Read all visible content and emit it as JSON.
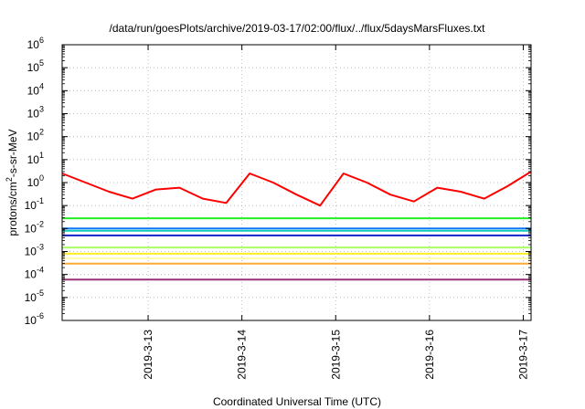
{
  "chart_data": {
    "type": "line",
    "title": "/data/run/goesPlots/archive/2019-03-17/02:00/flux/../flux/5daysMarsFluxes.txt",
    "xlabel": "Coordinated Universal Time (UTC)",
    "ylabel": "protons/cm2-s-sr-MeV",
    "ylabel_parts": {
      "pre": "protons/cm",
      "sup": "2",
      "post": "-s-sr-MeV"
    },
    "y_scale": "log",
    "ylim": [
      1e-06,
      1000000.0
    ],
    "xlim": [
      "2019-03-12 02:00",
      "2019-03-17 02:00"
    ],
    "grid": true,
    "y_ticks": [
      {
        "base": "10",
        "exp": "-6"
      },
      {
        "base": "10",
        "exp": "-5"
      },
      {
        "base": "10",
        "exp": "-4"
      },
      {
        "base": "10",
        "exp": "-3"
      },
      {
        "base": "10",
        "exp": "-2"
      },
      {
        "base": "10",
        "exp": "-1"
      },
      {
        "base": "10",
        "exp": "0"
      },
      {
        "base": "10",
        "exp": "1"
      },
      {
        "base": "10",
        "exp": "2"
      },
      {
        "base": "10",
        "exp": "3"
      },
      {
        "base": "10",
        "exp": "4"
      },
      {
        "base": "10",
        "exp": "5"
      },
      {
        "base": "10",
        "exp": "6"
      }
    ],
    "x_ticks": [
      {
        "label": "2019-3-13",
        "x": "2019-03-13 00:00"
      },
      {
        "label": "2019-3-14",
        "x": "2019-03-14 00:00"
      },
      {
        "label": "2019-3-15",
        "x": "2019-03-15 00:00"
      },
      {
        "label": "2019-3-16",
        "x": "2019-03-16 00:00"
      },
      {
        "label": "2019-3-17",
        "x": "2019-03-17 00:00"
      }
    ],
    "x": [
      "2019-03-12 02:00",
      "2019-03-12 08:00",
      "2019-03-12 14:00",
      "2019-03-12 20:00",
      "2019-03-13 02:00",
      "2019-03-13 08:00",
      "2019-03-13 14:00",
      "2019-03-13 20:00",
      "2019-03-14 02:00",
      "2019-03-14 08:00",
      "2019-03-14 14:00",
      "2019-03-14 20:00",
      "2019-03-15 02:00",
      "2019-03-15 08:00",
      "2019-03-15 14:00",
      "2019-03-15 20:00",
      "2019-03-16 02:00",
      "2019-03-16 08:00",
      "2019-03-16 14:00",
      "2019-03-16 20:00",
      "2019-03-17 02:00"
    ],
    "series": [
      {
        "color": "#ff0000",
        "values": [
          2.5,
          1.0,
          0.4,
          0.2,
          0.5,
          0.6,
          0.2,
          0.13,
          2.5,
          1.0,
          0.3,
          0.1,
          2.5,
          1.0,
          0.3,
          0.15,
          0.6,
          0.4,
          0.2,
          0.7,
          3.0
        ]
      },
      {
        "color": "#22ee22",
        "values": [
          0.028,
          0.028,
          0.028,
          0.028,
          0.028,
          0.028,
          0.028,
          0.028,
          0.028,
          0.028,
          0.028,
          0.028,
          0.028,
          0.028,
          0.028,
          0.028,
          0.028,
          0.028,
          0.028,
          0.028,
          0.028
        ]
      },
      {
        "color": "#1177ff",
        "values": [
          0.01,
          0.01,
          0.01,
          0.01,
          0.01,
          0.01,
          0.01,
          0.01,
          0.01,
          0.01,
          0.01,
          0.01,
          0.01,
          0.01,
          0.01,
          0.01,
          0.01,
          0.01,
          0.01,
          0.01,
          0.01
        ]
      },
      {
        "color": "#11ccbb",
        "values": [
          0.008,
          0.008,
          0.008,
          0.008,
          0.008,
          0.008,
          0.008,
          0.008,
          0.008,
          0.008,
          0.008,
          0.008,
          0.008,
          0.008,
          0.008,
          0.008,
          0.008,
          0.008,
          0.008,
          0.008,
          0.008
        ]
      },
      {
        "color": "#1122cc",
        "values": [
          0.005,
          0.005,
          0.005,
          0.005,
          0.005,
          0.005,
          0.005,
          0.005,
          0.005,
          0.005,
          0.005,
          0.005,
          0.005,
          0.005,
          0.005,
          0.005,
          0.005,
          0.005,
          0.005,
          0.005,
          0.005
        ]
      },
      {
        "color": "#aaff66",
        "values": [
          0.0015,
          0.0015,
          0.0015,
          0.0015,
          0.0015,
          0.0015,
          0.0015,
          0.0015,
          0.0015,
          0.0015,
          0.0015,
          0.0015,
          0.0015,
          0.0015,
          0.0015,
          0.0015,
          0.0015,
          0.0015,
          0.0015,
          0.0015,
          0.0015
        ]
      },
      {
        "color": "#ffee22",
        "values": [
          0.0008,
          0.0008,
          0.0008,
          0.0008,
          0.0008,
          0.0008,
          0.0008,
          0.0008,
          0.0008,
          0.0008,
          0.0008,
          0.0008,
          0.0008,
          0.0008,
          0.0008,
          0.0008,
          0.0008,
          0.0008,
          0.0008,
          0.0008,
          0.0008
        ]
      },
      {
        "color": "#ffffaa",
        "values": [
          0.0005,
          0.0005,
          0.0005,
          0.0005,
          0.0005,
          0.0005,
          0.0005,
          0.0005,
          0.0005,
          0.0005,
          0.0005,
          0.0005,
          0.0005,
          0.0005,
          0.0005,
          0.0005,
          0.0005,
          0.0005,
          0.0005,
          0.0005,
          0.0005
        ]
      },
      {
        "color": "#ffaa33",
        "values": [
          0.0003,
          0.0003,
          0.0003,
          0.0003,
          0.0003,
          0.0003,
          0.0003,
          0.0003,
          0.0003,
          0.0003,
          0.0003,
          0.0003,
          0.0003,
          0.0003,
          0.0003,
          0.0003,
          0.0003,
          0.0003,
          0.0003,
          0.0003,
          0.0003
        ]
      },
      {
        "color": "#993377",
        "values": [
          6e-05,
          6e-05,
          6e-05,
          6e-05,
          6e-05,
          6e-05,
          6e-05,
          6e-05,
          6e-05,
          6e-05,
          6e-05,
          6e-05,
          6e-05,
          6e-05,
          6e-05,
          6e-05,
          6e-05,
          6e-05,
          6e-05,
          6e-05,
          6e-05
        ]
      }
    ]
  }
}
